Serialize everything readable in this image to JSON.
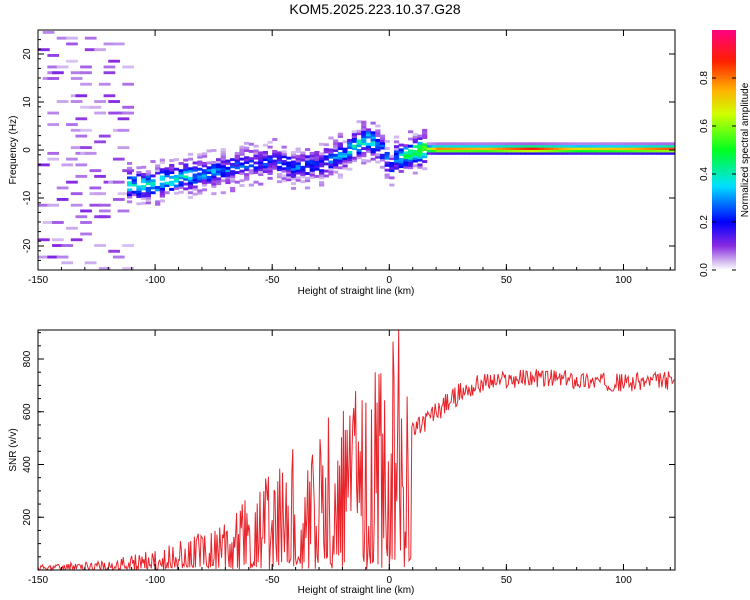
{
  "figure": {
    "title": "KOM5.2025.223.10.37.G28"
  },
  "colors": {
    "snr_line": "#e8242b",
    "axis": "#000000",
    "background": "#ffffff"
  },
  "chart_data": [
    {
      "type": "heatmap",
      "panel": "spectrogram",
      "xlabel": "Height of straight line (km)",
      "ylabel": "Frequency (Hz)",
      "xlim": [
        -150,
        122
      ],
      "ylim": [
        -25,
        25
      ],
      "x_ticks": [
        -150,
        -100,
        -50,
        0,
        50,
        100
      ],
      "y_ticks": [
        -20,
        -10,
        0,
        10,
        20
      ],
      "colorbar": {
        "label": "Normalized spectral amplitude",
        "range": [
          0,
          1
        ],
        "ticks": [
          0.0,
          0.2,
          0.4,
          0.6,
          0.8
        ]
      },
      "ridge": {
        "x": [
          -110,
          -100,
          -90,
          -80,
          -70,
          -60,
          -50,
          -40,
          -30,
          -20,
          -15,
          -10,
          -5,
          0,
          2,
          5,
          10,
          15,
          20,
          40,
          60,
          80,
          100,
          120
        ],
        "freq": [
          -7.5,
          -7,
          -6,
          -5,
          -4.5,
          -3,
          -2.5,
          -4,
          -3,
          -1,
          1,
          2,
          0.5,
          -3.5,
          -2,
          -1.5,
          -0.5,
          0,
          0,
          0,
          0,
          0,
          0,
          0
        ],
        "amplitude": [
          0.35,
          0.4,
          0.35,
          0.3,
          0.25,
          0.2,
          0.2,
          0.25,
          0.2,
          0.3,
          0.4,
          0.35,
          0.3,
          0.2,
          0.3,
          0.4,
          0.5,
          0.6,
          0.8,
          0.75,
          0.9,
          0.7,
          0.75,
          0.85
        ]
      }
    },
    {
      "type": "line",
      "panel": "snr",
      "xlabel": "Height of straight line (km)",
      "ylabel": "SNR (v/v)",
      "xlim": [
        -150,
        122
      ],
      "ylim": [
        0,
        910
      ],
      "x_ticks": [
        -150,
        -100,
        -50,
        0,
        50,
        100
      ],
      "y_ticks": [
        200,
        400,
        600,
        800
      ],
      "series": [
        {
          "name": "SNR",
          "envelope_x": [
            -150,
            -120,
            -100,
            -90,
            -80,
            -70,
            -60,
            -50,
            -40,
            -30,
            -20,
            -10,
            -5,
            0,
            5,
            10,
            20,
            30,
            40,
            50,
            60,
            80,
            100,
            122
          ],
          "envelope_y": [
            10,
            20,
            40,
            60,
            80,
            110,
            150,
            200,
            250,
            300,
            350,
            400,
            430,
            450,
            470,
            520,
            600,
            670,
            710,
            720,
            730,
            720,
            710,
            720
          ],
          "spike_x": 4,
          "spike_y": 910
        }
      ]
    }
  ]
}
